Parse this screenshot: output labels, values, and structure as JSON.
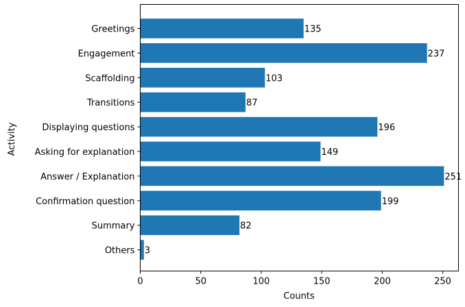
{
  "chart_data": {
    "type": "bar",
    "orientation": "horizontal",
    "title": "",
    "xlabel": "Counts",
    "ylabel": "Activity",
    "categories": [
      "Greetings",
      "Engagement",
      "Scaffolding",
      "Transitions",
      "Displaying questions",
      "Asking for explanation",
      "Answer / Explanation",
      "Confirmation question",
      "Summary",
      "Others"
    ],
    "values": [
      135,
      237,
      103,
      87,
      196,
      149,
      251,
      199,
      82,
      3
    ],
    "value_labels": [
      "135",
      "237",
      "103",
      "87",
      "196",
      "149",
      "251",
      "199",
      "82",
      "3"
    ],
    "xlim": [
      0,
      263
    ],
    "xticks": [
      0,
      50,
      100,
      150,
      200,
      250
    ],
    "xtick_labels": [
      "0",
      "50",
      "100",
      "150",
      "200",
      "250"
    ],
    "grid": false,
    "bar_color": "#1f77b4"
  }
}
